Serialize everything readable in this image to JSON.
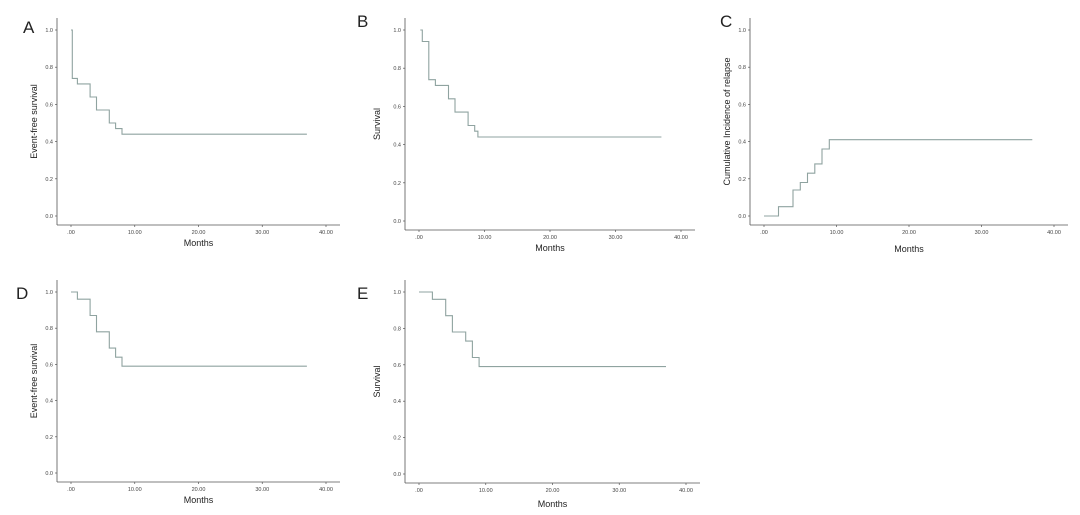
{
  "chart_data": [
    {
      "panel": "A",
      "type": "line",
      "step": "post",
      "xlabel": "Months",
      "ylabel": "Event-free survival",
      "xlim": [
        0,
        40
      ],
      "ylim": [
        0,
        1
      ],
      "x_ticks": [
        0,
        10,
        20,
        30,
        40
      ],
      "x_tick_labels": [
        ".00",
        "10.00",
        "20.00",
        "30.00",
        "40.00"
      ],
      "y_ticks": [
        0,
        0.2,
        0.4,
        0.6,
        0.8,
        1.0
      ],
      "y_tick_labels": [
        "0.0",
        "0.2",
        "0.4",
        "0.6",
        "0.8",
        "1.0"
      ],
      "grid": false,
      "series": [
        {
          "x": [
            0,
            0.2,
            1,
            3,
            4,
            6,
            7,
            8,
            37
          ],
          "y": [
            1.0,
            0.74,
            0.71,
            0.64,
            0.57,
            0.5,
            0.47,
            0.44,
            0.44
          ]
        }
      ]
    },
    {
      "panel": "B",
      "type": "line",
      "step": "post",
      "xlabel": "Months",
      "ylabel": "Survival",
      "xlim": [
        0,
        40
      ],
      "ylim": [
        0,
        1
      ],
      "x_ticks": [
        0,
        10,
        20,
        30,
        40
      ],
      "x_tick_labels": [
        ".00",
        "10.00",
        "20.00",
        "30.00",
        "40.00"
      ],
      "y_ticks": [
        0,
        0.2,
        0.4,
        0.6,
        0.8,
        1.0
      ],
      "y_tick_labels": [
        "0.0",
        "0.2",
        "0.4",
        "0.6",
        "0.8",
        "1.0"
      ],
      "grid": false,
      "series": [
        {
          "x": [
            0.2,
            0.5,
            1.5,
            2.5,
            4.5,
            5.5,
            7.5,
            8.5,
            9,
            37
          ],
          "y": [
            1.0,
            0.94,
            0.74,
            0.71,
            0.64,
            0.57,
            0.5,
            0.47,
            0.44,
            0.44
          ]
        }
      ]
    },
    {
      "panel": "C",
      "type": "line",
      "step": "post",
      "xlabel": "Months",
      "ylabel": "Cumulative Incidence of relapse",
      "xlim": [
        0,
        40
      ],
      "ylim": [
        0,
        1
      ],
      "x_ticks": [
        0,
        10,
        20,
        30,
        40
      ],
      "x_tick_labels": [
        ".00",
        "10.00",
        "20.00",
        "30.00",
        "40.00"
      ],
      "y_ticks": [
        0,
        0.2,
        0.4,
        0.6,
        0.8,
        1.0
      ],
      "y_tick_labels": [
        "0.0",
        "0.2",
        "0.4",
        "0.6",
        "0.8",
        "1.0"
      ],
      "grid": false,
      "series": [
        {
          "x": [
            0,
            2,
            4,
            5,
            6,
            7,
            8,
            9,
            37
          ],
          "y": [
            0.0,
            0.05,
            0.14,
            0.18,
            0.23,
            0.28,
            0.36,
            0.41,
            0.41
          ]
        }
      ]
    },
    {
      "panel": "D",
      "type": "line",
      "step": "post",
      "xlabel": "Months",
      "ylabel": "Event-free survival",
      "xlim": [
        0,
        40
      ],
      "ylim": [
        0,
        1
      ],
      "x_ticks": [
        0,
        10,
        20,
        30,
        40
      ],
      "x_tick_labels": [
        ".00",
        "10.00",
        "20.00",
        "30.00",
        "40.00"
      ],
      "y_ticks": [
        0,
        0.2,
        0.4,
        0.6,
        0.8,
        1.0
      ],
      "y_tick_labels": [
        "0.0",
        "0.2",
        "0.4",
        "0.6",
        "0.8",
        "1.0"
      ],
      "grid": false,
      "series": [
        {
          "x": [
            0,
            1,
            3,
            4,
            6,
            7,
            8,
            37
          ],
          "y": [
            1.0,
            0.96,
            0.87,
            0.78,
            0.69,
            0.64,
            0.59,
            0.59
          ]
        }
      ]
    },
    {
      "panel": "E",
      "type": "line",
      "step": "post",
      "xlabel": "Months",
      "ylabel": "Survival",
      "xlim": [
        0,
        40
      ],
      "ylim": [
        0,
        1
      ],
      "x_ticks": [
        0,
        10,
        20,
        30,
        40
      ],
      "x_tick_labels": [
        ".00",
        "10.00",
        "20.00",
        "30.00",
        "40.00"
      ],
      "y_ticks": [
        0,
        0.2,
        0.4,
        0.6,
        0.8,
        1.0
      ],
      "y_tick_labels": [
        "0.0",
        "0.2",
        "0.4",
        "0.6",
        "0.8",
        "1.0"
      ],
      "grid": false,
      "series": [
        {
          "x": [
            0,
            2,
            4,
            5,
            7,
            8,
            9,
            37
          ],
          "y": [
            1.0,
            0.96,
            0.87,
            0.78,
            0.73,
            0.64,
            0.59,
            0.59
          ]
        }
      ]
    }
  ]
}
